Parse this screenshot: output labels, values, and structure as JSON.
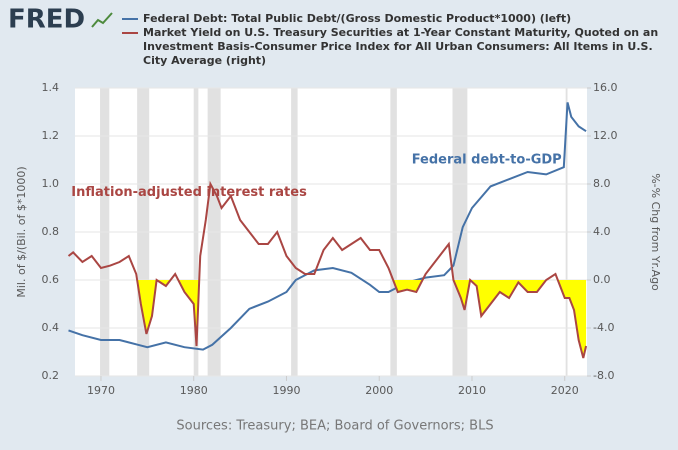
{
  "logo": "FRED",
  "chart_data": {
    "type": "line",
    "series": [
      {
        "name": "Federal Debt: Total Public Debt/(Gross Domestic Product*1000) (left)",
        "color": "#4572a7",
        "axis": "y",
        "x": [
          1966.5,
          1968,
          1970,
          1972,
          1974,
          1975,
          1977,
          1979,
          1981,
          1982,
          1984,
          1986,
          1988,
          1990,
          1991,
          1993,
          1995,
          1997,
          1999,
          2000,
          2001,
          2003,
          2005,
          2007,
          2008,
          2009,
          2010,
          2012,
          2014,
          2016,
          2018,
          2019.9,
          2020.3,
          2020.7,
          2021.5,
          2022.3
        ],
        "values": [
          0.39,
          0.37,
          0.35,
          0.35,
          0.33,
          0.32,
          0.34,
          0.32,
          0.31,
          0.33,
          0.4,
          0.48,
          0.51,
          0.55,
          0.6,
          0.64,
          0.65,
          0.63,
          0.58,
          0.55,
          0.55,
          0.59,
          0.61,
          0.62,
          0.66,
          0.82,
          0.9,
          0.99,
          1.02,
          1.05,
          1.04,
          1.07,
          1.34,
          1.28,
          1.24,
          1.22
        ]
      },
      {
        "name": "Market Yield on U.S. Treasury Securities at 1-Year Constant Maturity, Quoted on an Investment Basis-Consumer Price Index for All Urban Consumers: All Items in U.S. City Average (right)",
        "color": "#aa4643",
        "axis": "y2",
        "negative_fill": "#ffff00",
        "x": [
          1966.5,
          1967,
          1968,
          1969,
          1970,
          1971,
          1972,
          1973,
          1973.8,
          1974.3,
          1974.9,
          1975.5,
          1976,
          1977,
          1978,
          1979,
          1980.0,
          1980.3,
          1980.7,
          1981.3,
          1981.8,
          1982.5,
          1983,
          1984,
          1985,
          1986,
          1987,
          1988,
          1989,
          1990,
          1991,
          1992,
          1993,
          1994,
          1995,
          1996,
          1997,
          1998,
          1999,
          2000,
          2001,
          2002,
          2003,
          2004,
          2005,
          2006,
          2007,
          2007.5,
          2008,
          2008.8,
          2009.2,
          2009.8,
          2010.5,
          2011,
          2012,
          2013,
          2014,
          2015,
          2016,
          2017,
          2018,
          2019,
          2020,
          2020.5,
          2021,
          2021.5,
          2022,
          2022.3
        ],
        "values": [
          2.0,
          2.3,
          1.5,
          2.0,
          1.0,
          1.2,
          1.5,
          2.0,
          0.5,
          -2.0,
          -4.5,
          -3.0,
          0.0,
          -0.5,
          0.5,
          -1.0,
          -2.0,
          -5.5,
          2.0,
          5.0,
          8.0,
          7.0,
          6.0,
          7.0,
          5.0,
          4.0,
          3.0,
          3.0,
          4.0,
          2.0,
          1.0,
          0.5,
          0.5,
          2.5,
          3.5,
          2.5,
          3.0,
          3.5,
          2.5,
          2.5,
          1.0,
          -1.0,
          -0.8,
          -1.0,
          0.5,
          1.5,
          2.5,
          3.0,
          0.0,
          -1.5,
          -2.5,
          0.0,
          -0.5,
          -3.0,
          -2.0,
          -1.0,
          -1.5,
          -0.2,
          -1.0,
          -1.0,
          0.0,
          0.5,
          -1.5,
          -1.5,
          -2.5,
          -5.0,
          -6.5,
          -5.5
        ]
      }
    ],
    "recessions": [
      [
        1969.9,
        1970.9
      ],
      [
        1973.9,
        1975.2
      ],
      [
        1980.0,
        1980.5
      ],
      [
        1981.5,
        1982.9
      ],
      [
        1990.5,
        1991.2
      ],
      [
        2001.2,
        2001.9
      ],
      [
        2007.9,
        2009.5
      ],
      [
        2020.1,
        2020.3
      ]
    ],
    "xlim": [
      1967.2,
      2022.4
    ],
    "xticks": [
      1970,
      1980,
      1990,
      2000,
      2010,
      2020
    ],
    "ylim": [
      0.2,
      1.4
    ],
    "yticks": [
      0.2,
      0.4,
      0.6,
      0.8,
      {
        "value": 1.0,
        "label": "1.0"
      },
      1.2,
      1.4
    ],
    "y2lim": [
      -8,
      16
    ],
    "y2ticks": [
      {
        "value": -8,
        "label": "-8.0"
      },
      {
        "value": -4,
        "label": "-4.0"
      },
      {
        "value": 0,
        "label": "0.0"
      },
      {
        "value": 4,
        "label": "4.0"
      },
      {
        "value": 8,
        "label": "8.0"
      },
      {
        "value": 12,
        "label": "12.0"
      },
      {
        "value": 16,
        "label": "16.0"
      }
    ],
    "ylabel": "Mil. of $/(Bil. of $*1000)",
    "y2label": "%-% Chg from Yr.Ago",
    "grid": true,
    "annotations": [
      {
        "text": "Inflation-adjusted interest rates",
        "x": 1966.8,
        "y": 0.965,
        "series": 1
      },
      {
        "text": "Federal debt-to-GDP",
        "x": 2003.5,
        "y": 1.1,
        "series": 0
      }
    ],
    "source": "Sources: Treasury; BEA; Board of Governors; BLS"
  }
}
